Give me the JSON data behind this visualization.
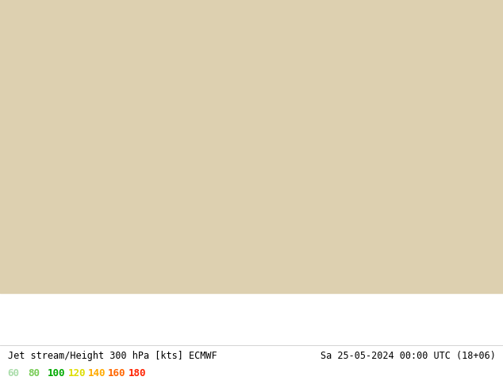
{
  "title_left": "Jet stream/Height 300 hPa [kts] ECMWF",
  "title_right": "Sa 25-05-2024 00:00 UTC (18+06)",
  "legend_values": [
    60,
    80,
    100,
    120,
    140,
    160,
    180
  ],
  "legend_colors": [
    "#aaddaa",
    "#77cc55",
    "#00aa00",
    "#dddd00",
    "#ffaa00",
    "#ff6600",
    "#ff2200"
  ],
  "fig_width": 6.34,
  "fig_height": 4.9,
  "dpi": 100,
  "title_fontsize": 8.5,
  "legend_fontsize": 9,
  "extent": [
    20,
    160,
    10,
    80
  ],
  "ocean_color": "#b8d4e8",
  "land_color": "#ddd0b0",
  "plateau_color": "#c0a878",
  "veg_color": "#c8d8b0",
  "border_color": "#888888"
}
